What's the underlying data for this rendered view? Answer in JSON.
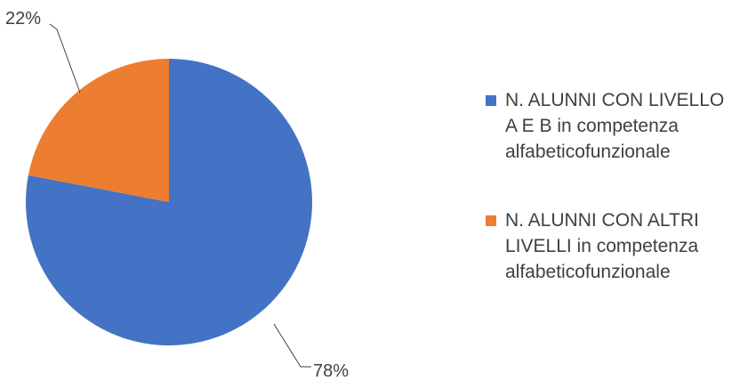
{
  "chart_data": {
    "type": "pie",
    "title": "",
    "start_angle_deg": 0,
    "direction": "clockwise",
    "series": [
      {
        "name": "N. ALUNNI CON LIVELLO A E B in  competenza alfabeticofunzionale",
        "label_lines": [
          "N. ALUNNI CON LIVELLO",
          "A E B in  competenza",
          "alfabeticofunzionale"
        ],
        "value": 78,
        "data_label": "78%",
        "color": "#4472C4"
      },
      {
        "name": "N. ALUNNI CON ALTRI LIVELLI in competenza alfabeticofunzionale",
        "label_lines": [
          "N. ALUNNI CON ALTRI",
          "LIVELLI in competenza",
          "alfabeticofunzionale"
        ],
        "value": 22,
        "data_label": "22%",
        "color": "#ED7D31"
      }
    ],
    "legend_position": "right"
  }
}
